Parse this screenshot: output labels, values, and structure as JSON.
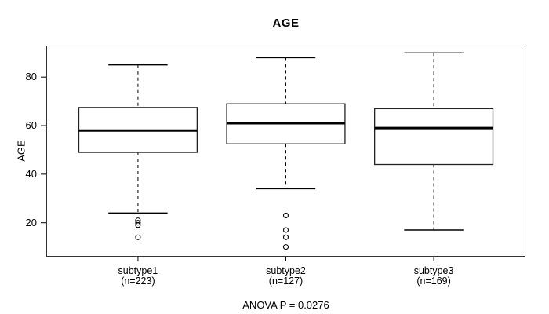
{
  "chart_data": {
    "type": "boxplot",
    "title": "AGE",
    "ylabel": "AGE",
    "xlabel": "",
    "annotation": "ANOVA P = 0.0276",
    "ylim": [
      6,
      93
    ],
    "yticks": [
      20,
      40,
      60,
      80
    ],
    "grid": false,
    "legend": "none",
    "colors": {
      "background": "#ffffff",
      "box_fill": "#ffffff",
      "line": "#000000",
      "frame": "#333333"
    },
    "groups": [
      {
        "label": "subtype1",
        "sublabel": "(n=223)",
        "n": 223,
        "whisker_low": 24,
        "q1": 49,
        "median": 58,
        "q3": 67.5,
        "whisker_high": 85,
        "outliers": [
          21,
          20,
          19,
          14
        ]
      },
      {
        "label": "subtype2",
        "sublabel": "(n=127)",
        "n": 127,
        "whisker_low": 34,
        "q1": 52.5,
        "median": 61,
        "q3": 69,
        "whisker_high": 88,
        "outliers": [
          23,
          17,
          14,
          10
        ]
      },
      {
        "label": "subtype3",
        "sublabel": "(n=169)",
        "n": 169,
        "whisker_low": 17,
        "q1": 44,
        "median": 59,
        "q3": 67,
        "whisker_high": 90,
        "outliers": []
      }
    ]
  }
}
